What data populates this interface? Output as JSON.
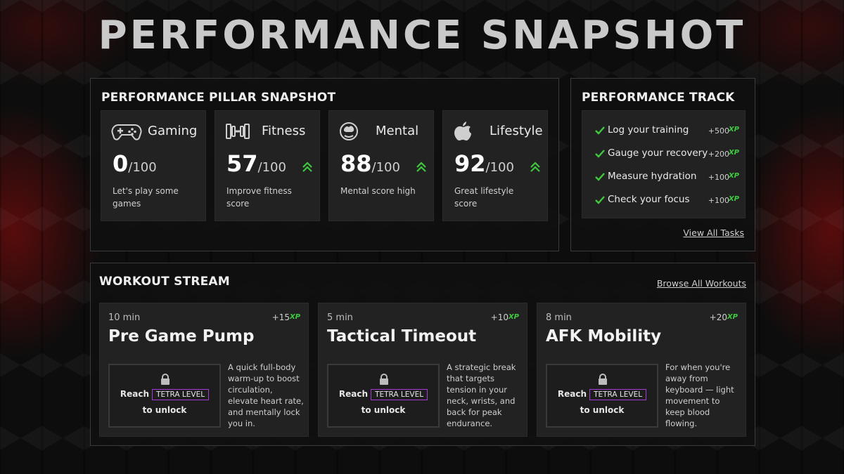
{
  "page_title": "PERFORMANCE SNAPSHOT",
  "pillars": {
    "title": "PERFORMANCE PILLAR SNAPSHOT",
    "items": [
      {
        "name": "Gaming",
        "score": "0",
        "max": "/100",
        "desc": "Let's play some games",
        "icon": "gamepad-icon",
        "trend_up": false
      },
      {
        "name": "Fitness",
        "score": "57",
        "max": "/100",
        "desc": "Improve fitness score",
        "icon": "dumbbell-icon",
        "trend_up": true
      },
      {
        "name": "Mental",
        "score": "88",
        "max": "/100",
        "desc": "Mental score high",
        "icon": "brain-head-icon",
        "trend_up": true
      },
      {
        "name": "Lifestyle",
        "score": "92",
        "max": "/100",
        "desc": "Great lifestyle score",
        "icon": "apple-icon",
        "trend_up": true
      }
    ]
  },
  "track": {
    "title": "PERFORMANCE TRACK",
    "tasks": [
      {
        "label": "Log your training",
        "xp": "+500",
        "xp_mark": "XP"
      },
      {
        "label": "Gauge your recovery",
        "xp": "+200",
        "xp_mark": "XP"
      },
      {
        "label": "Measure hydration",
        "xp": "+100",
        "xp_mark": "XP"
      },
      {
        "label": "Check your focus",
        "xp": "+100",
        "xp_mark": "XP"
      }
    ],
    "view_all": "View All Tasks"
  },
  "workouts": {
    "title": "WORKOUT STREAM",
    "browse_all": "Browse All Workouts",
    "lock_reach": "Reach",
    "lock_badge": "TETRA LEVEL",
    "lock_unlock": "to unlock",
    "items": [
      {
        "duration": "10 min",
        "xp": "+15",
        "xp_mark": "XP",
        "title": "Pre Game Pump",
        "desc": "A quick full-body warm-up to boost circulation, elevate heart rate, and mentally lock you in."
      },
      {
        "duration": "5 min",
        "xp": "+10",
        "xp_mark": "XP",
        "title": "Tactical Timeout",
        "desc": "A strategic break that targets tension in your neck, wrists, and back for peak endurance."
      },
      {
        "duration": "8 min",
        "xp": "+20",
        "xp_mark": "XP",
        "title": "AFK Mobility",
        "desc": "For when you're away from keyboard — light movement to keep blood flowing."
      }
    ]
  },
  "colors": {
    "accent_green": "#3ec93e",
    "badge_purple": "#a63ad4",
    "background_red": "#960a0a"
  }
}
